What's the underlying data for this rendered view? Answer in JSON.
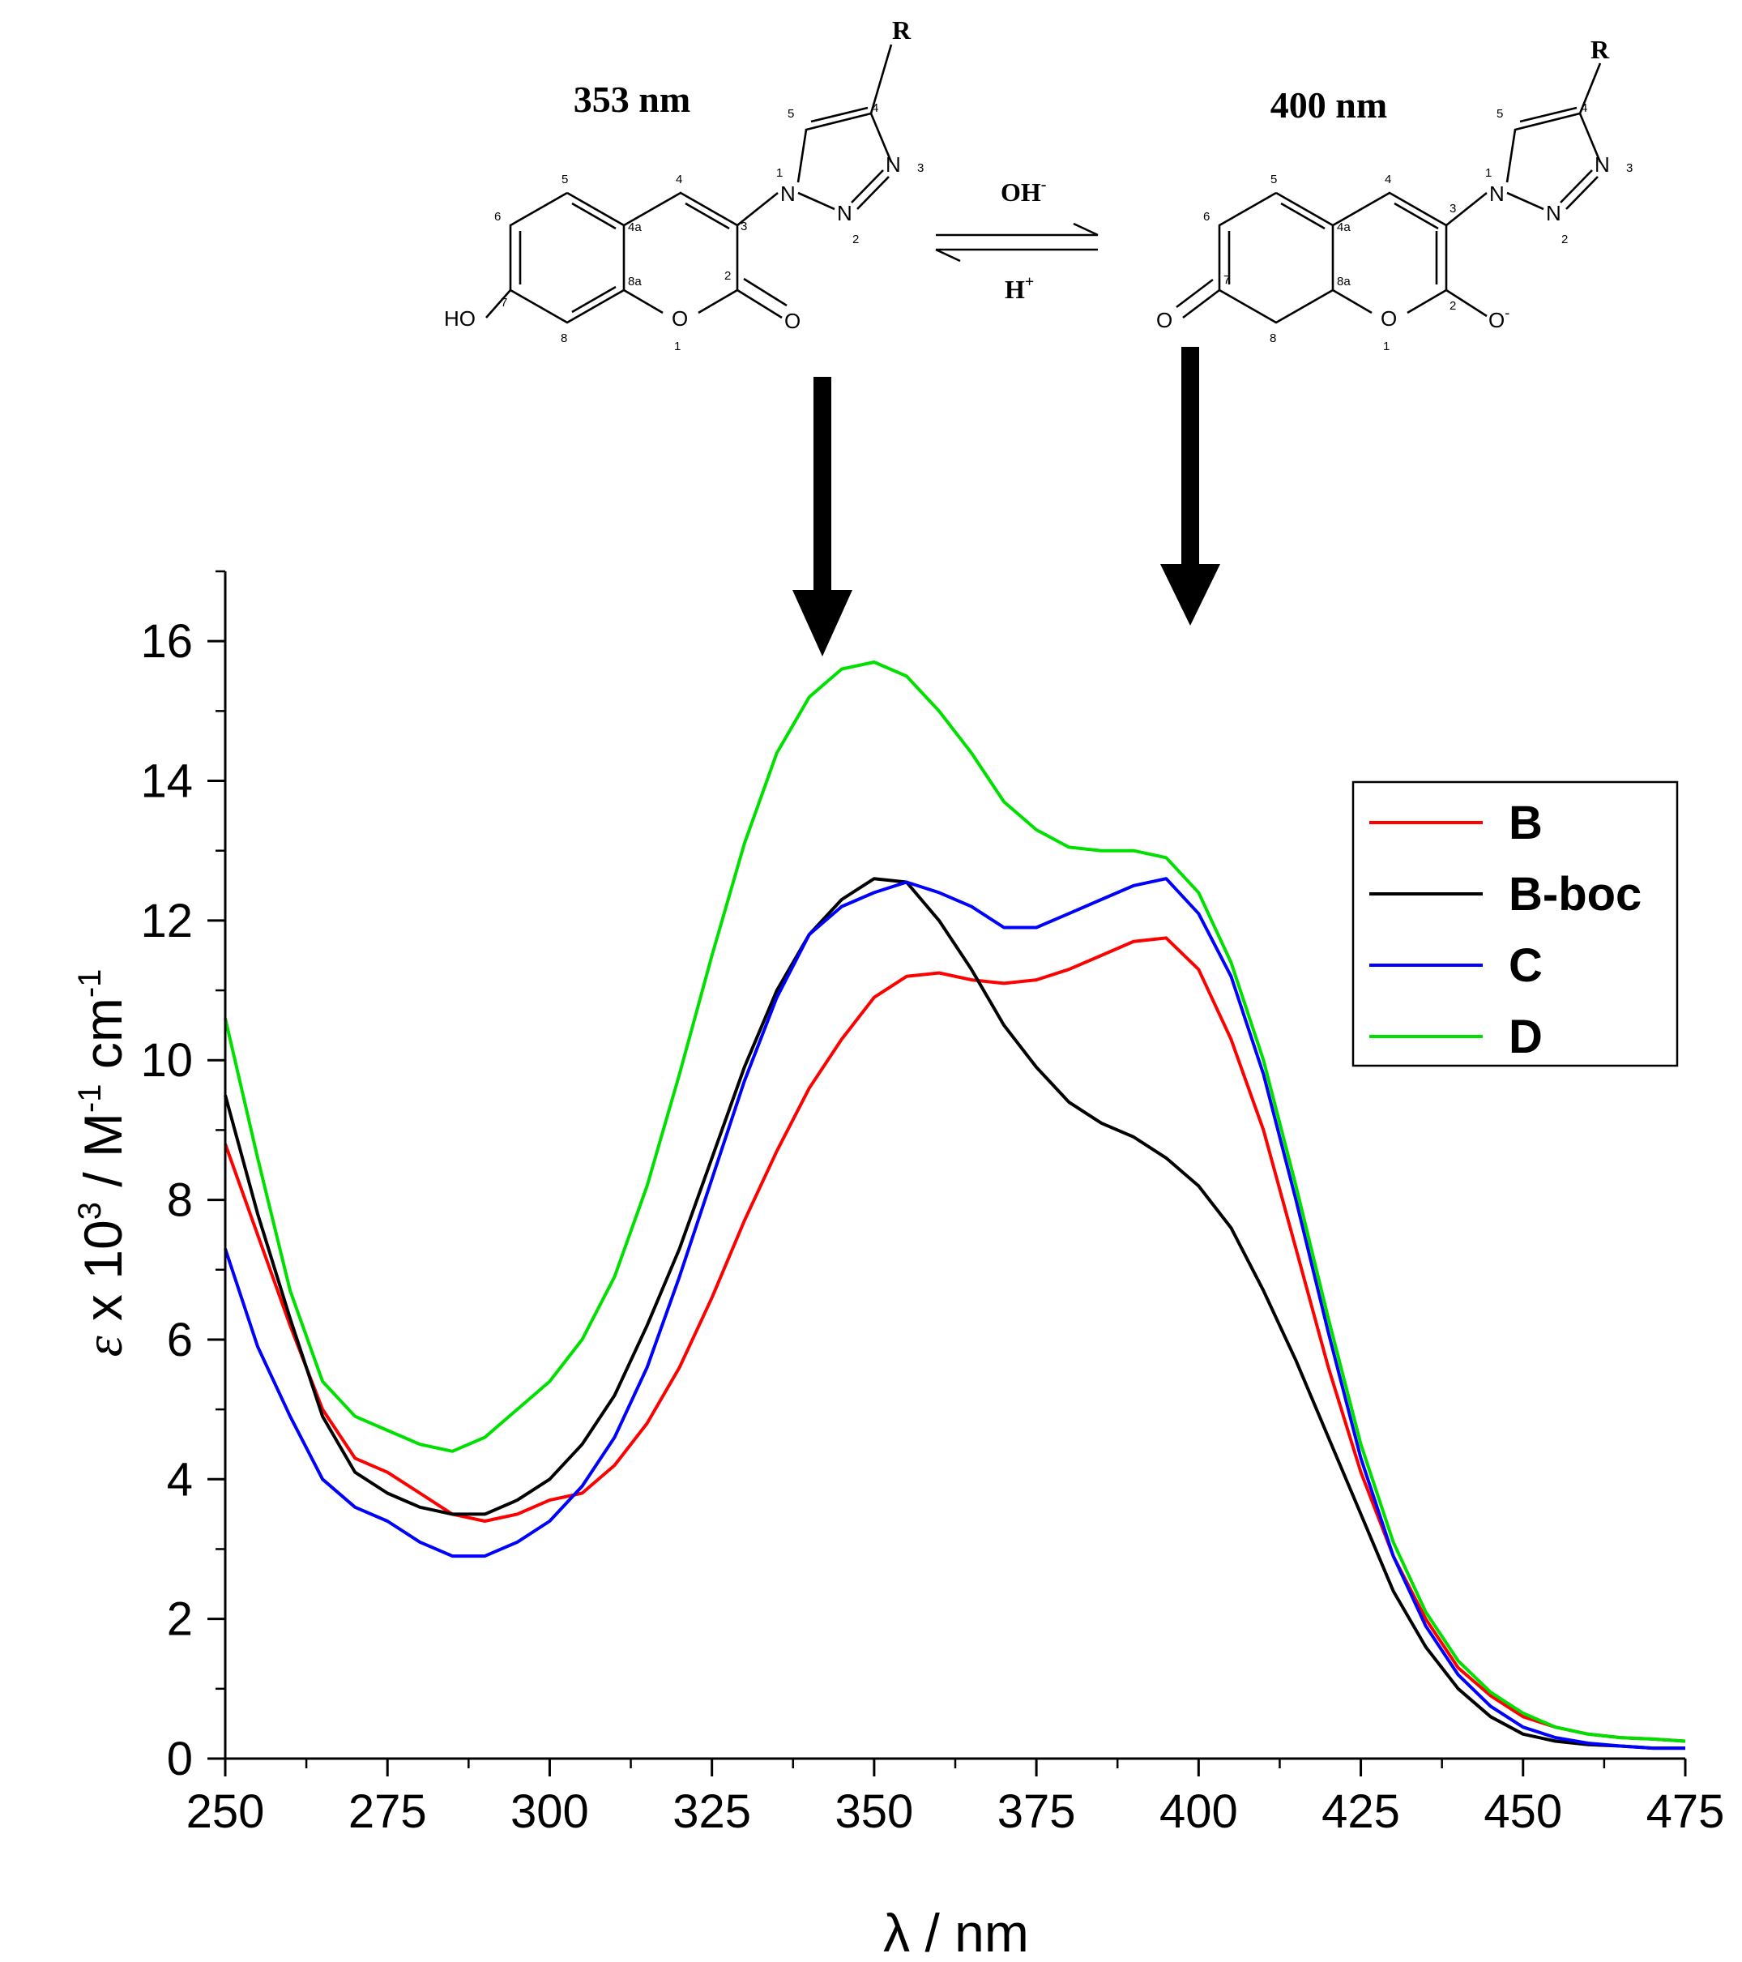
{
  "scheme": {
    "left_wavelength": "353 nm",
    "right_wavelength": "400 nm",
    "reagent_top": "OH",
    "reagent_top_charge": "-",
    "reagent_bottom": "H",
    "reagent_bottom_charge": "+",
    "substituent": "R",
    "left_atoms": {
      "hydroxyl": "HO",
      "carbonyl_o": "O",
      "ring_o": "O",
      "n1": "N",
      "n2": "N",
      "n3": "N"
    },
    "right_atoms": {
      "keto_o": "O",
      "phenoxide_o": "O",
      "phenoxide_charge": "-",
      "ring_o": "O",
      "n1": "N",
      "n2": "N",
      "n3": "N"
    },
    "locants": [
      "1",
      "2",
      "3",
      "4",
      "4a",
      "5",
      "6",
      "7",
      "8",
      "8a"
    ],
    "triazole_locants": [
      "1",
      "2",
      "3",
      "4",
      "5"
    ]
  },
  "chart_data": {
    "type": "line",
    "xlabel": "λ / nm",
    "ylabel_parts": {
      "symbol": "ε",
      "mid": " x 10",
      "exp1": "3",
      "unit": " / M",
      "exp2": "-1",
      "unit2": " cm",
      "exp3": "-1"
    },
    "xlim": [
      250,
      475
    ],
    "ylim": [
      0,
      17
    ],
    "xticks": [
      250,
      275,
      300,
      325,
      350,
      375,
      400,
      425,
      450,
      475
    ],
    "yticks": [
      0,
      2,
      4,
      6,
      8,
      10,
      12,
      14,
      16
    ],
    "grid": false,
    "legend_position": "top-right",
    "series": [
      {
        "name": "B",
        "color": "#ff0000",
        "x": [
          250,
          255,
          260,
          265,
          270,
          275,
          280,
          285,
          290,
          295,
          300,
          305,
          310,
          315,
          320,
          325,
          330,
          335,
          340,
          345,
          350,
          355,
          360,
          365,
          370,
          375,
          380,
          385,
          390,
          395,
          400,
          405,
          410,
          415,
          420,
          425,
          430,
          435,
          440,
          445,
          450,
          455,
          460,
          465,
          470,
          475
        ],
        "y": [
          8.8,
          7.5,
          6.2,
          5.0,
          4.3,
          4.1,
          3.8,
          3.5,
          3.4,
          3.5,
          3.7,
          3.8,
          4.2,
          4.8,
          5.6,
          6.6,
          7.7,
          8.7,
          9.6,
          10.3,
          10.9,
          11.2,
          11.25,
          11.15,
          11.1,
          11.15,
          11.3,
          11.5,
          11.7,
          11.75,
          11.3,
          10.3,
          9.0,
          7.3,
          5.6,
          4.1,
          2.9,
          2.0,
          1.3,
          0.9,
          0.6,
          0.45,
          0.35,
          0.3,
          0.28,
          0.25
        ]
      },
      {
        "name": "B-boc",
        "color": "#000000",
        "x": [
          250,
          255,
          260,
          265,
          270,
          275,
          280,
          285,
          290,
          295,
          300,
          305,
          310,
          315,
          320,
          325,
          330,
          335,
          340,
          345,
          350,
          355,
          360,
          365,
          370,
          375,
          380,
          385,
          390,
          395,
          400,
          405,
          410,
          415,
          420,
          425,
          430,
          435,
          440,
          445,
          450,
          455,
          460,
          465,
          470,
          475
        ],
        "y": [
          9.5,
          7.8,
          6.3,
          4.9,
          4.1,
          3.8,
          3.6,
          3.5,
          3.5,
          3.7,
          4.0,
          4.5,
          5.2,
          6.2,
          7.3,
          8.6,
          9.9,
          11.0,
          11.8,
          12.3,
          12.6,
          12.55,
          12.0,
          11.3,
          10.5,
          9.9,
          9.4,
          9.1,
          8.9,
          8.6,
          8.2,
          7.6,
          6.7,
          5.7,
          4.6,
          3.5,
          2.4,
          1.6,
          1.0,
          0.6,
          0.35,
          0.25,
          0.2,
          0.18,
          0.15,
          0.15
        ]
      },
      {
        "name": "C",
        "color": "#0000ff",
        "x": [
          250,
          255,
          260,
          265,
          270,
          275,
          280,
          285,
          290,
          295,
          300,
          305,
          310,
          315,
          320,
          325,
          330,
          335,
          340,
          345,
          350,
          355,
          360,
          365,
          370,
          375,
          380,
          385,
          390,
          395,
          400,
          405,
          410,
          415,
          420,
          425,
          430,
          435,
          440,
          445,
          450,
          455,
          460,
          465,
          470,
          475
        ],
        "y": [
          7.3,
          5.9,
          4.9,
          4.0,
          3.6,
          3.4,
          3.1,
          2.9,
          2.9,
          3.1,
          3.4,
          3.9,
          4.6,
          5.6,
          6.9,
          8.3,
          9.7,
          10.9,
          11.8,
          12.2,
          12.4,
          12.55,
          12.4,
          12.2,
          11.9,
          11.9,
          12.1,
          12.3,
          12.5,
          12.6,
          12.1,
          11.2,
          9.8,
          8.0,
          6.1,
          4.3,
          2.9,
          1.9,
          1.2,
          0.75,
          0.45,
          0.3,
          0.22,
          0.18,
          0.15,
          0.15
        ]
      },
      {
        "name": "D",
        "color": "#00e000",
        "x": [
          250,
          255,
          260,
          265,
          270,
          275,
          280,
          285,
          290,
          295,
          300,
          305,
          310,
          315,
          320,
          325,
          330,
          335,
          340,
          345,
          350,
          355,
          360,
          365,
          370,
          375,
          380,
          385,
          390,
          395,
          400,
          405,
          410,
          415,
          420,
          425,
          430,
          435,
          440,
          445,
          450,
          455,
          460,
          465,
          470,
          475
        ],
        "y": [
          10.6,
          8.6,
          6.7,
          5.4,
          4.9,
          4.7,
          4.5,
          4.4,
          4.6,
          5.0,
          5.4,
          6.0,
          6.9,
          8.2,
          9.8,
          11.5,
          13.1,
          14.4,
          15.2,
          15.6,
          15.7,
          15.5,
          15.0,
          14.4,
          13.7,
          13.3,
          13.05,
          13.0,
          13.0,
          12.9,
          12.4,
          11.4,
          10.0,
          8.2,
          6.3,
          4.5,
          3.1,
          2.1,
          1.4,
          0.95,
          0.65,
          0.45,
          0.35,
          0.3,
          0.28,
          0.25
        ]
      }
    ]
  }
}
